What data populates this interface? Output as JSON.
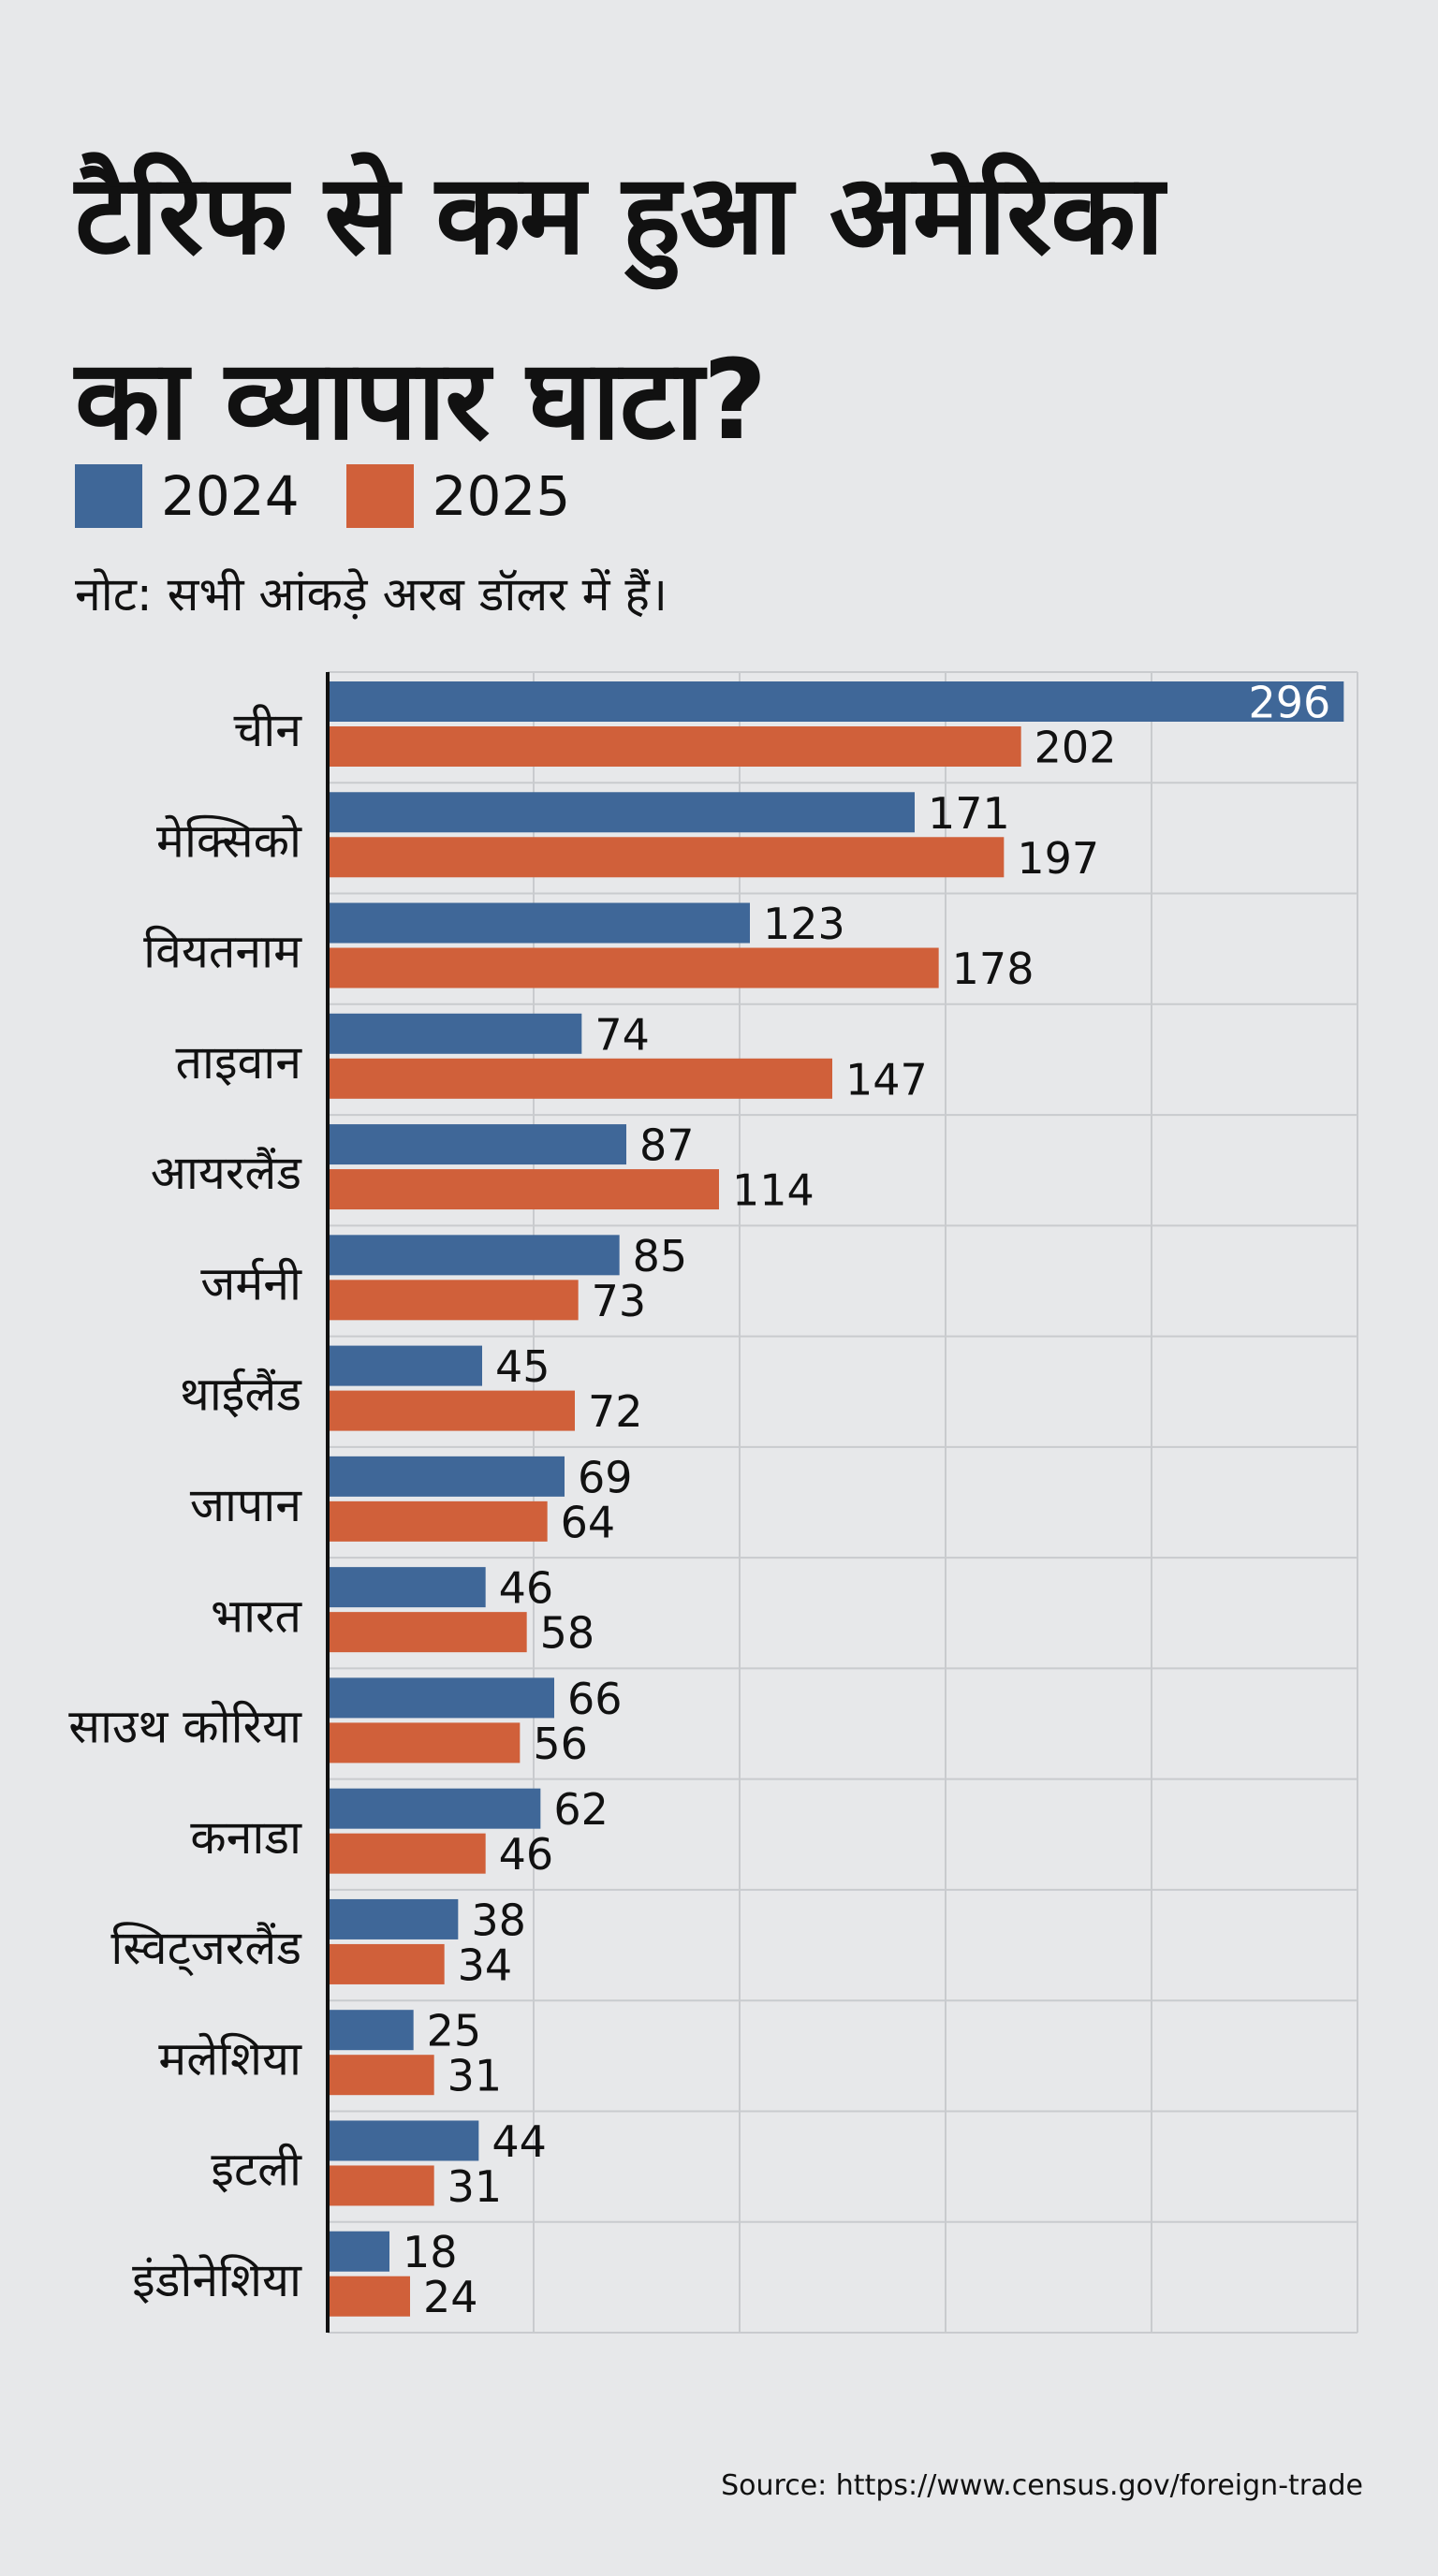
{
  "header": {
    "title_line1": "टैरिफ से कम हुआ अमेरिका",
    "title_line2": "का व्यापार घाटा?",
    "note": "नोट: सभी आंकड़े अरब डॉलर में हैं।"
  },
  "legend": [
    {
      "label": "2024",
      "color": "#3f6798"
    },
    {
      "label": "2025",
      "color": "#d0603a"
    }
  ],
  "source": "Source: https://www.census.gov/foreign-trade",
  "chart_data": {
    "type": "bar",
    "orientation": "horizontal",
    "title": "टैरिफ से कम हुआ अमेरिका का व्यापार घाटा?",
    "note": "नोट: सभी आंकड़े अरब डॉलर में हैं।",
    "xlabel": "",
    "ylabel": "",
    "xlim": [
      0,
      300
    ],
    "grid": true,
    "legend_position": "top-left",
    "categories": [
      "चीन",
      "मेक्सिको",
      "वियतनाम",
      "ताइवान",
      "आयरलैंड",
      "जर्मनी",
      "थाईलैंड",
      "जापान",
      "भारत",
      "साउथ कोरिया",
      "कनाडा",
      "स्विट्जरलैंड",
      "मलेशिया",
      "इटली",
      "इंडोनेशिया"
    ],
    "series": [
      {
        "name": "2024",
        "color": "#3f6798",
        "values": [
          296,
          171,
          123,
          74,
          87,
          85,
          45,
          69,
          46,
          66,
          62,
          38,
          25,
          44,
          18
        ]
      },
      {
        "name": "2025",
        "color": "#d0603a",
        "values": [
          202,
          197,
          178,
          147,
          114,
          73,
          72,
          64,
          58,
          56,
          46,
          34,
          31,
          31,
          24
        ]
      }
    ]
  }
}
